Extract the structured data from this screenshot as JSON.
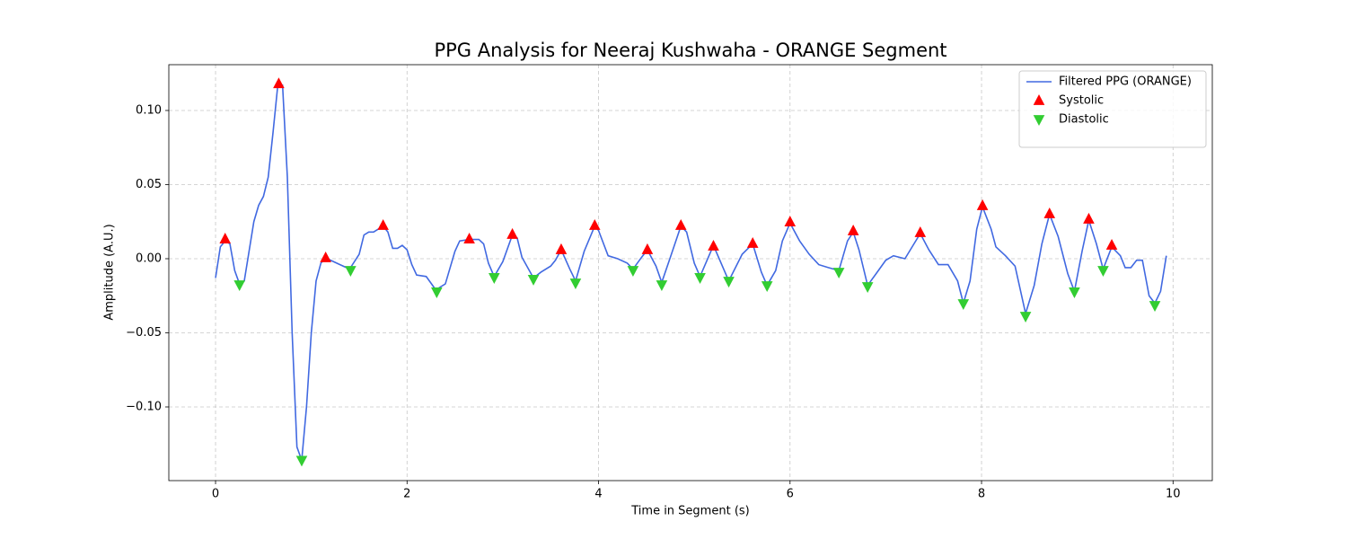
{
  "chart_data": {
    "type": "line",
    "title": "PPG Analysis for Neeraj Kushwaha - ORANGE Segment",
    "xlabel": "Time in Segment (s)",
    "ylabel": "Amplitude (A.U.)",
    "xlim": [
      -0.488,
      10.41
    ],
    "ylim": [
      -0.1497,
      0.1309
    ],
    "xticks": [
      0,
      2,
      4,
      6,
      8,
      10
    ],
    "yticks": [
      {
        "value": -0.1,
        "label": "−0.10"
      },
      {
        "value": -0.05,
        "label": "−0.05"
      },
      {
        "value": 0,
        "label": "0.00"
      },
      {
        "value": 0.05,
        "label": "0.05"
      },
      {
        "value": 0.1,
        "label": "0.10"
      }
    ],
    "grid": true,
    "legend": "upper right",
    "series": [
      {
        "name": "Filtered PPG (ORANGE)",
        "type": "line",
        "color": "#4169e1",
        "x": [
          0,
          0.05,
          0.1,
          0.15,
          0.2,
          0.25,
          0.3,
          0.35,
          0.4,
          0.45,
          0.5,
          0.55,
          0.6,
          0.65,
          0.7,
          0.75,
          0.8,
          0.85,
          0.9,
          0.95,
          1.0,
          1.05,
          1.1,
          1.15,
          1.2,
          1.3,
          1.4,
          1.5,
          1.55,
          1.6,
          1.65,
          1.75,
          1.8,
          1.85,
          1.9,
          1.95,
          2.0,
          2.05,
          2.1,
          2.2,
          2.3,
          2.4,
          2.5,
          2.55,
          2.65,
          2.75,
          2.8,
          2.85,
          2.91,
          3.0,
          3.1,
          3.15,
          3.2,
          3.32,
          3.4,
          3.5,
          3.55,
          3.61,
          3.7,
          3.76,
          3.85,
          3.96,
          4.0,
          4.1,
          4.2,
          4.3,
          4.36,
          4.45,
          4.51,
          4.6,
          4.66,
          4.75,
          4.86,
          4.92,
          5.0,
          5.06,
          5.2,
          5.28,
          5.36,
          5.5,
          5.61,
          5.7,
          5.76,
          5.85,
          5.92,
          6.0,
          6.1,
          6.2,
          6.3,
          6.4,
          6.51,
          6.6,
          6.66,
          6.72,
          6.81,
          6.9,
          7.0,
          7.08,
          7.2,
          7.36,
          7.45,
          7.55,
          7.65,
          7.75,
          7.81,
          7.88,
          7.95,
          8.01,
          8.1,
          8.15,
          8.25,
          8.35,
          8.46,
          8.55,
          8.63,
          8.71,
          8.8,
          8.9,
          8.97,
          9.05,
          9.12,
          9.2,
          9.27,
          9.36,
          9.45,
          9.5,
          9.56,
          9.62,
          9.68,
          9.75,
          9.81,
          9.87,
          9.93
        ],
        "values": [
          -0.013,
          0.008,
          0.012,
          0.01,
          -0.008,
          -0.017,
          -0.015,
          0.005,
          0.025,
          0.036,
          0.042,
          0.055,
          0.085,
          0.117,
          0.117,
          0.055,
          -0.05,
          -0.127,
          -0.136,
          -0.1,
          -0.05,
          -0.015,
          -0.003,
          0.001,
          -0.001,
          -0.004,
          -0.007,
          0.003,
          0.016,
          0.018,
          0.018,
          0.022,
          0.018,
          0.007,
          0.007,
          0.009,
          0.006,
          -0.004,
          -0.011,
          -0.012,
          -0.021,
          -0.017,
          0.005,
          0.012,
          0.013,
          0.013,
          0.01,
          -0.003,
          -0.012,
          -0.002,
          0.016,
          0.014,
          0.001,
          -0.013,
          -0.009,
          -0.005,
          -0.001,
          0.006,
          -0.007,
          -0.015,
          0.005,
          0.022,
          0.019,
          0.002,
          0,
          -0.003,
          -0.007,
          0.001,
          0.006,
          -0.005,
          -0.016,
          0.001,
          0.022,
          0.018,
          -0.003,
          -0.012,
          0.009,
          -0.003,
          -0.015,
          0.003,
          0.01,
          -0.009,
          -0.018,
          -0.008,
          0.012,
          0.024,
          0.012,
          0.003,
          -0.004,
          -0.006,
          -0.008,
          0.012,
          0.018,
          0.006,
          -0.018,
          -0.01,
          -0.001,
          0.002,
          0,
          0.017,
          0.006,
          -0.004,
          -0.004,
          -0.015,
          -0.03,
          -0.015,
          0.02,
          0.035,
          0.02,
          0.008,
          0.002,
          -0.005,
          -0.037,
          -0.018,
          0.01,
          0.03,
          0.015,
          -0.01,
          -0.022,
          0.005,
          0.026,
          0.01,
          -0.007,
          0.008,
          0.002,
          -0.006,
          -0.006,
          -0.001,
          -0.001,
          -0.025,
          -0.03,
          -0.022,
          0.002
        ]
      },
      {
        "name": "Systolic",
        "type": "scatter",
        "marker": "up",
        "color": "#ff0000",
        "x": [
          0.1,
          0.66,
          1.15,
          1.75,
          2.65,
          3.1,
          3.61,
          3.96,
          4.51,
          4.86,
          5.2,
          5.61,
          6.0,
          6.66,
          7.36,
          8.01,
          8.71,
          9.12,
          9.36
        ],
        "values": [
          0.0133,
          0.118,
          0.0006,
          0.0224,
          0.0133,
          0.0164,
          0.0061,
          0.0224,
          0.0061,
          0.0224,
          0.0085,
          0.0103,
          0.0248,
          0.0188,
          0.0176,
          0.0358,
          0.0303,
          0.0267,
          0.0091
        ]
      },
      {
        "name": "Diastolic",
        "type": "scatter",
        "marker": "down",
        "color": "#32cd32",
        "x": [
          0.25,
          0.9,
          1.41,
          2.31,
          2.91,
          3.32,
          3.76,
          4.36,
          4.66,
          5.06,
          5.36,
          5.76,
          6.51,
          6.81,
          7.81,
          8.46,
          8.97,
          9.27,
          9.81
        ],
        "values": [
          -0.0176,
          -0.136,
          -0.0079,
          -0.0224,
          -0.0127,
          -0.0139,
          -0.0164,
          -0.0079,
          -0.0176,
          -0.0127,
          -0.0152,
          -0.0182,
          -0.0091,
          -0.0188,
          -0.0303,
          -0.0388,
          -0.0224,
          -0.0079,
          -0.0315
        ]
      }
    ]
  }
}
